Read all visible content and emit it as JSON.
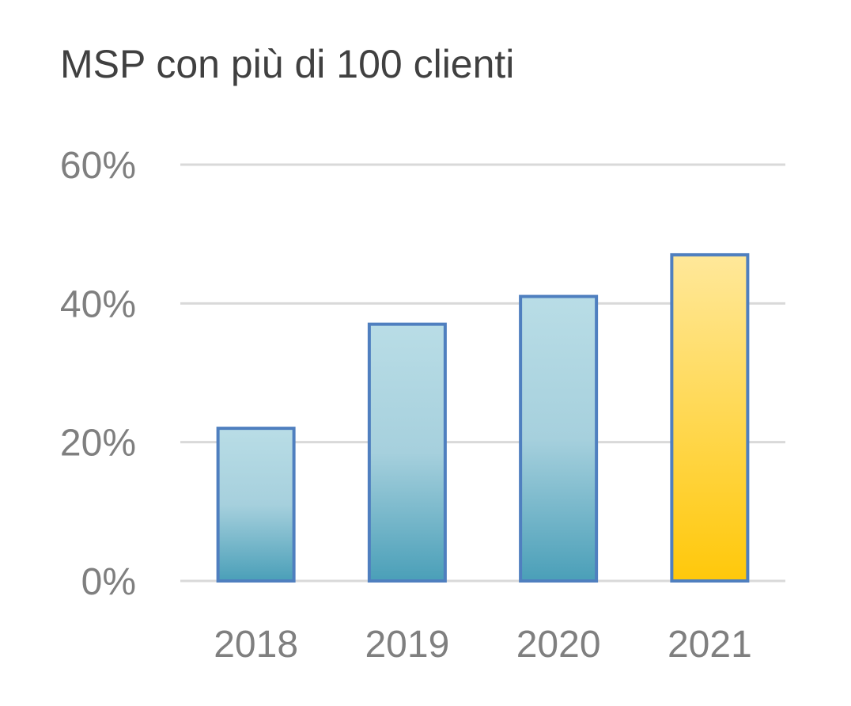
{
  "chart_data": {
    "type": "bar",
    "title": "MSP con più di 100 clienti",
    "xlabel": "",
    "ylabel": "",
    "categories": [
      "2018",
      "2019",
      "2020",
      "2021"
    ],
    "values": [
      22,
      37,
      41,
      47
    ],
    "unit": "%",
    "ylim": [
      0,
      60
    ],
    "yticks": [
      0,
      20,
      40,
      60
    ],
    "ytick_labels": [
      "0%",
      "20%",
      "40%",
      "60%"
    ],
    "grid": true,
    "legend": "none",
    "highlight_category": "2021"
  },
  "colors": {
    "title": "#404040",
    "tick_label": "#7f7f7f",
    "grid": "#d9d9d9",
    "bar_border": "#4f7fbf",
    "bar_gradient_top": "#b9dde6",
    "bar_gradient_bottom": "#4a9fb8",
    "highlight_gradient_top": "#ffe89a",
    "highlight_gradient_bottom": "#ffc80a"
  }
}
